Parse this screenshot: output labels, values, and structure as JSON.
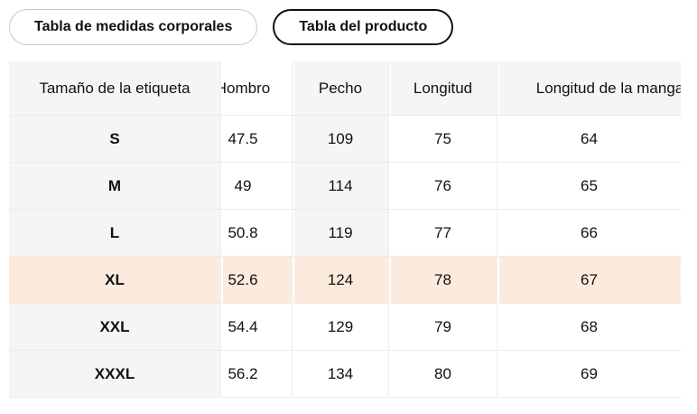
{
  "tabs": [
    {
      "label": "Tabla de medidas corporales",
      "selected": false
    },
    {
      "label": "Tabla del producto",
      "selected": true
    }
  ],
  "table": {
    "columns": [
      "Tamaño de la etiqueta",
      "Hombro",
      "Pecho",
      "Longitud",
      "Longitud de la manga"
    ],
    "rows": [
      {
        "size": "S",
        "values": [
          "47.5",
          "109",
          "75",
          "64"
        ],
        "highlighted": false
      },
      {
        "size": "M",
        "values": [
          "49",
          "114",
          "76",
          "65"
        ],
        "highlighted": false
      },
      {
        "size": "L",
        "values": [
          "50.8",
          "119",
          "77",
          "66"
        ],
        "highlighted": false
      },
      {
        "size": "XL",
        "values": [
          "52.6",
          "124",
          "78",
          "67"
        ],
        "highlighted": true
      },
      {
        "size": "XXL",
        "values": [
          "54.4",
          "129",
          "79",
          "68"
        ],
        "highlighted": false
      },
      {
        "size": "XXXL",
        "values": [
          "56.2",
          "134",
          "80",
          "69"
        ],
        "highlighted": false
      }
    ],
    "highlighted_row": "XL"
  },
  "colors": {
    "shade": "#f5f5f6",
    "highlight": "#fcebdc",
    "row_line": "#ebebeb",
    "tab_border": "#c8c8c8",
    "selected_tab_border": "#111111",
    "text": "#111111"
  }
}
